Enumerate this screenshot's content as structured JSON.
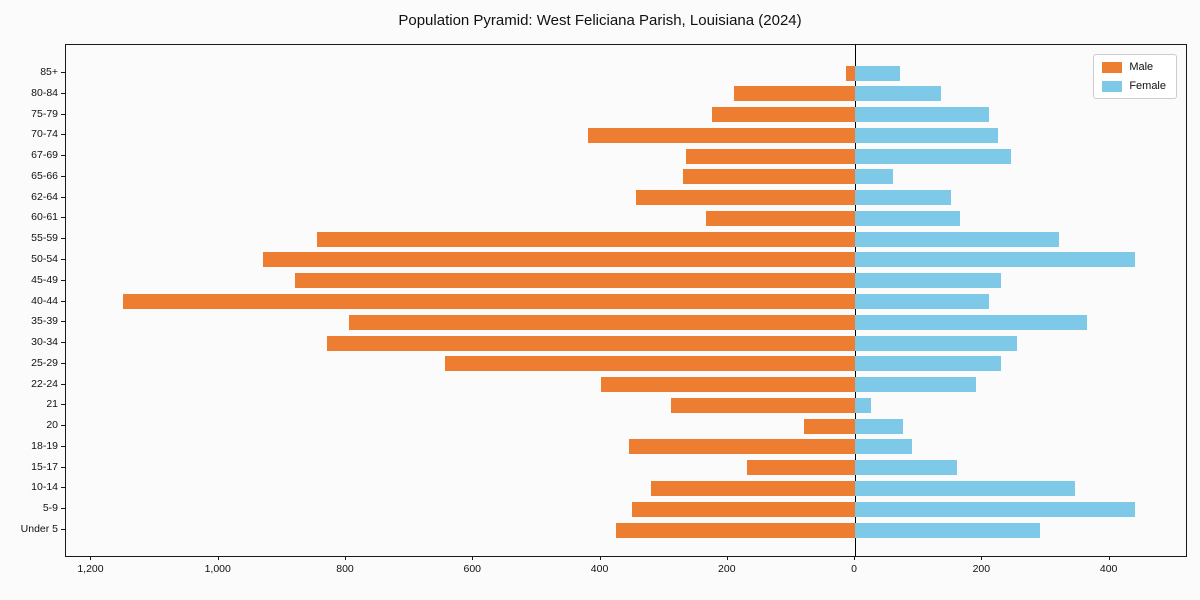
{
  "chart_data": {
    "type": "bar",
    "orientation": "horizontal-pyramid",
    "title": "Population Pyramid: West Feliciana Parish, Louisiana (2024)",
    "categories": [
      "85+",
      "80-84",
      "75-79",
      "70-74",
      "67-69",
      "65-66",
      "62-64",
      "60-61",
      "55-59",
      "50-54",
      "45-49",
      "40-44",
      "35-39",
      "30-34",
      "25-29",
      "22-24",
      "21",
      "20",
      "18-19",
      "15-17",
      "10-14",
      "5-9",
      "Under 5"
    ],
    "series": [
      {
        "name": "Male",
        "values": [
          15,
          190,
          225,
          420,
          265,
          270,
          345,
          235,
          845,
          930,
          880,
          1150,
          795,
          830,
          645,
          400,
          290,
          80,
          355,
          170,
          320,
          350,
          375
        ]
      },
      {
        "name": "Female",
        "values": [
          70,
          135,
          210,
          225,
          245,
          60,
          150,
          165,
          320,
          440,
          230,
          210,
          365,
          255,
          230,
          190,
          25,
          75,
          90,
          160,
          345,
          440,
          290
        ]
      }
    ],
    "colors": {
      "male": "#ED7D31",
      "female": "#7EC8E8"
    },
    "xlim": [
      -1240,
      520
    ],
    "xticks": [
      {
        "value": -1200,
        "label": "1,200"
      },
      {
        "value": -1000,
        "label": "1,000"
      },
      {
        "value": -800,
        "label": "800"
      },
      {
        "value": -600,
        "label": "600"
      },
      {
        "value": -400,
        "label": "400"
      },
      {
        "value": -200,
        "label": "200"
      },
      {
        "value": 0,
        "label": "0"
      },
      {
        "value": 200,
        "label": "200"
      },
      {
        "value": 400,
        "label": "400"
      }
    ],
    "legend_position": "upper-right",
    "grid": false
  }
}
